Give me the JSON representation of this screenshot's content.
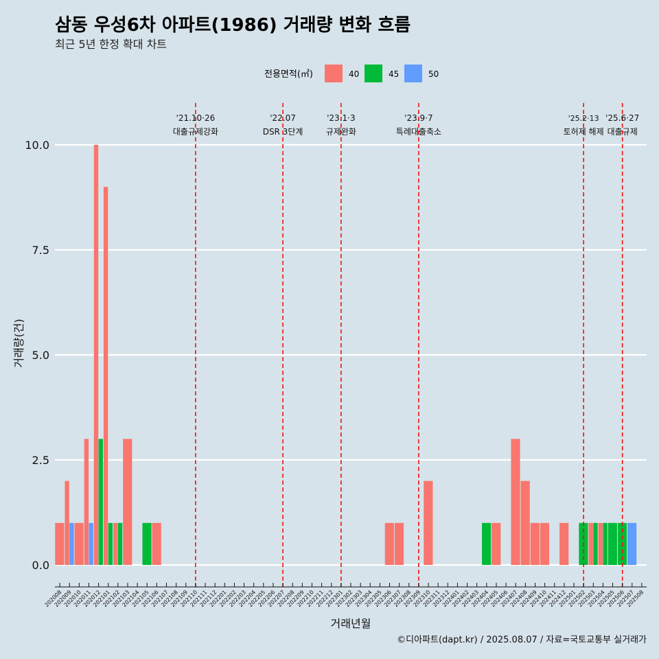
{
  "header": {
    "title": "삼동 우성6차 아파트(1986) 거래량 변화 흐름",
    "subtitle": "최근 5년 한정 확대 차트"
  },
  "legend": {
    "title": "전용면적(㎡)",
    "items": [
      {
        "label": "40",
        "color": "#f8766d"
      },
      {
        "label": "45",
        "color": "#00ba38"
      },
      {
        "label": "50",
        "color": "#619cff"
      }
    ]
  },
  "caption": "©디아파트(dapt.kr) / 2025.08.07 / 자료=국토교통부 실거래가",
  "chart_data": {
    "type": "bar",
    "stacked": false,
    "xlabel": "거래년월",
    "ylabel": "거래량(건)",
    "ylim": [
      0,
      10
    ],
    "yticks": [
      "0.0",
      "2.5",
      "5.0",
      "7.5",
      "10.0"
    ],
    "grid": "horizontal major lines",
    "legend_position": "top",
    "categories": [
      "202008",
      "202009",
      "202010",
      "202011",
      "202012",
      "202101",
      "202102",
      "202103",
      "202104",
      "202105",
      "202106",
      "202107",
      "202108",
      "202109",
      "202110",
      "202111",
      "202112",
      "202201",
      "202202",
      "202203",
      "202204",
      "202205",
      "202206",
      "202207",
      "202208",
      "202209",
      "202210",
      "202211",
      "202212",
      "202301",
      "202302",
      "202303",
      "202304",
      "202305",
      "202306",
      "202307",
      "202308",
      "202309",
      "202310",
      "202311",
      "202312",
      "202401",
      "202402",
      "202403",
      "202404",
      "202405",
      "202406",
      "202407",
      "202408",
      "202409",
      "202410",
      "202411",
      "202412",
      "202501",
      "202502",
      "202503",
      "202504",
      "202505",
      "202506",
      "202507",
      "202508"
    ],
    "series": [
      {
        "name": "40",
        "color": "#f8766d",
        "points": [
          [
            "202008",
            1
          ],
          [
            "202009",
            2
          ],
          [
            "202010",
            1
          ],
          [
            "202011",
            3
          ],
          [
            "202012",
            10
          ],
          [
            "202101",
            9
          ],
          [
            "202102",
            1
          ],
          [
            "202103",
            3
          ],
          [
            "202106",
            1
          ],
          [
            "202306",
            1
          ],
          [
            "202307",
            1
          ],
          [
            "202310",
            2
          ],
          [
            "202405",
            1
          ],
          [
            "202407",
            3
          ],
          [
            "202408",
            2
          ],
          [
            "202409",
            1
          ],
          [
            "202410",
            1
          ],
          [
            "202412",
            1
          ],
          [
            "202503",
            1
          ],
          [
            "202504",
            1
          ]
        ]
      },
      {
        "name": "45",
        "color": "#00ba38",
        "points": [
          [
            "202012",
            3
          ],
          [
            "202101",
            1
          ],
          [
            "202102",
            1
          ],
          [
            "202105",
            1
          ],
          [
            "202404",
            1
          ],
          [
            "202502",
            1
          ],
          [
            "202503",
            1
          ],
          [
            "202504",
            1
          ],
          [
            "202505",
            1
          ],
          [
            "202506",
            1
          ]
        ]
      },
      {
        "name": "50",
        "color": "#619cff",
        "points": [
          [
            "202009",
            1
          ],
          [
            "202011",
            1
          ],
          [
            "202507",
            1
          ]
        ]
      }
    ],
    "events": [
      {
        "at": "202110",
        "date": "'21.10·26",
        "label": "대출규제강화"
      },
      {
        "at": "202207",
        "date": "'22.07",
        "label": "DSR 3단계"
      },
      {
        "at": "202301",
        "date": "'23.1·3",
        "label": "규제완화"
      },
      {
        "at": "202309",
        "date": "'23.9·7",
        "label": "특례대출축소"
      },
      {
        "at": "202502",
        "date": "'25.2·13",
        "label": "토허제 해제"
      },
      {
        "at": "202506",
        "date": "'25.6·27",
        "label": "대출규제"
      }
    ]
  }
}
